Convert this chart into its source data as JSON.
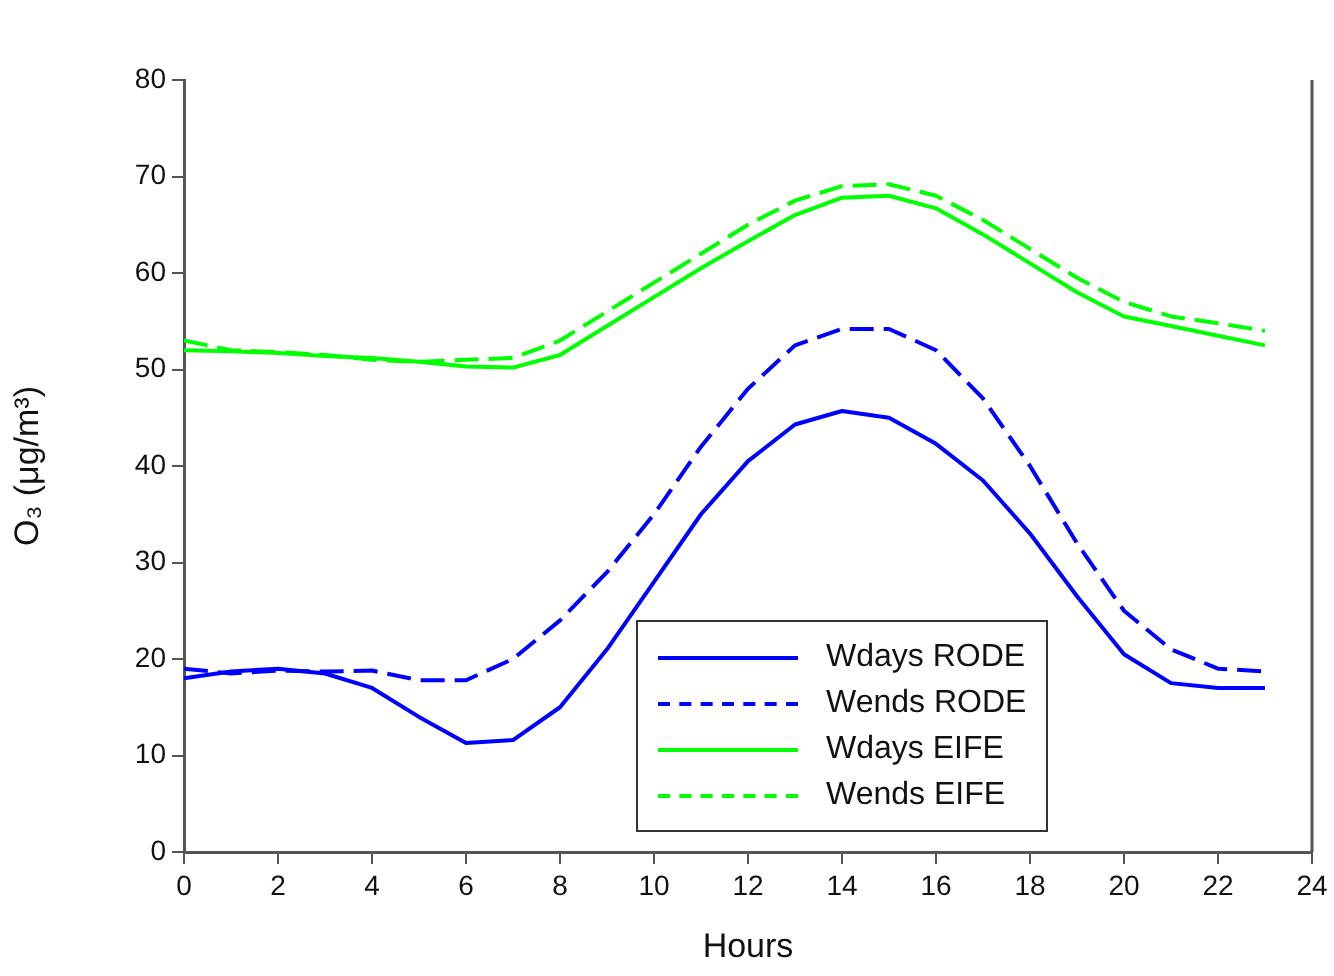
{
  "chart_data": {
    "type": "line",
    "xlabel": "Hours",
    "ylabel": "O₃ (μg/m³)",
    "x": [
      0,
      1,
      2,
      3,
      4,
      5,
      6,
      7,
      8,
      9,
      10,
      11,
      12,
      13,
      14,
      15,
      16,
      17,
      18,
      19,
      20,
      21,
      22,
      23
    ],
    "xlim": [
      0,
      24
    ],
    "xticks": [
      0,
      2,
      4,
      6,
      8,
      10,
      12,
      14,
      16,
      18,
      20,
      22,
      24
    ],
    "ylim": [
      0,
      80
    ],
    "yticks": [
      0,
      10,
      20,
      30,
      40,
      50,
      60,
      70,
      80
    ],
    "grid": false,
    "legend": "bottom right",
    "marker": "none",
    "series": [
      {
        "name": "Wdays RODE",
        "color": "#0000ff",
        "line_style": "solid",
        "values": [
          18,
          18.7,
          19,
          18.5,
          17,
          14,
          11.3,
          11.6,
          15,
          21,
          28,
          35,
          40.5,
          44.3,
          45.7,
          45,
          42.3,
          38.5,
          33,
          26.5,
          20.5,
          17.5,
          17,
          17
        ]
      },
      {
        "name": "Wends RODE",
        "color": "#0000ff",
        "line_style": "dashed",
        "values": [
          19,
          18.5,
          18.8,
          18.7,
          18.8,
          17.8,
          17.8,
          20,
          24,
          29,
          35,
          42,
          48,
          52.5,
          54.2,
          54.2,
          52,
          47,
          40,
          32,
          25,
          21,
          19,
          18.7
        ]
      },
      {
        "name": "Wdays EIFE",
        "color": "#00ff00",
        "line_style": "solid",
        "values": [
          52,
          51.9,
          51.7,
          51.4,
          51.2,
          50.8,
          50.3,
          50.2,
          51.5,
          54.5,
          57.5,
          60.5,
          63.3,
          66,
          67.8,
          68,
          66.7,
          64,
          61,
          58,
          55.5,
          54.5,
          53.5,
          52.5
        ]
      },
      {
        "name": "Wends EIFE",
        "color": "#00ff00",
        "line_style": "dashed",
        "values": [
          53,
          52,
          51.8,
          51.5,
          51,
          50.8,
          51,
          51.2,
          53,
          56,
          59,
          62,
          65,
          67.5,
          69,
          69.2,
          68,
          65.5,
          62.5,
          59.5,
          57,
          55.5,
          54.8,
          54
        ]
      }
    ]
  }
}
